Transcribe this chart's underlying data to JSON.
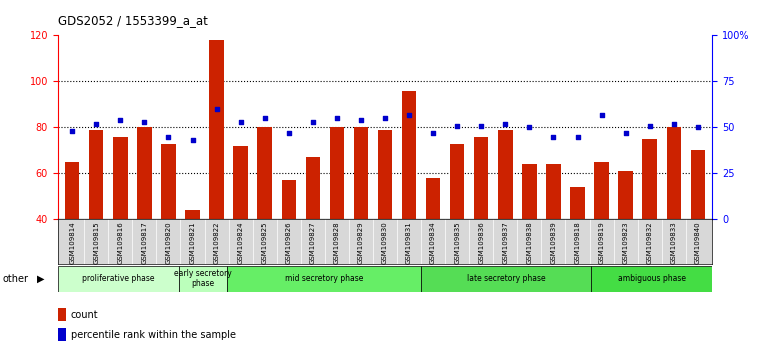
{
  "title": "GDS2052 / 1553399_a_at",
  "samples": [
    "GSM109814",
    "GSM109815",
    "GSM109816",
    "GSM109817",
    "GSM109820",
    "GSM109821",
    "GSM109822",
    "GSM109824",
    "GSM109825",
    "GSM109826",
    "GSM109827",
    "GSM109828",
    "GSM109829",
    "GSM109830",
    "GSM109831",
    "GSM109834",
    "GSM109835",
    "GSM109836",
    "GSM109837",
    "GSM109838",
    "GSM109839",
    "GSM109818",
    "GSM109819",
    "GSM109823",
    "GSM109832",
    "GSM109833",
    "GSM109840"
  ],
  "counts": [
    65,
    79,
    76,
    80,
    73,
    44,
    118,
    72,
    80,
    57,
    67,
    80,
    80,
    79,
    96,
    58,
    73,
    76,
    79,
    64,
    64,
    54,
    65,
    61,
    75,
    80,
    70
  ],
  "percentiles": [
    48,
    52,
    54,
    53,
    45,
    43,
    60,
    53,
    55,
    47,
    53,
    55,
    54,
    55,
    57,
    47,
    51,
    51,
    52,
    50,
    45,
    45,
    57,
    47,
    51,
    52,
    50
  ],
  "ylim_left": [
    40,
    120
  ],
  "ylim_right": [
    0,
    100
  ],
  "yticks_left": [
    40,
    60,
    80,
    100,
    120
  ],
  "yticks_right": [
    0,
    25,
    50,
    75,
    100
  ],
  "ytick_labels_right": [
    "0",
    "25",
    "50",
    "75",
    "100%"
  ],
  "bar_color": "#cc2200",
  "dot_color": "#0000cc",
  "phase_boundaries": [
    {
      "label": "proliferative phase",
      "start": 0,
      "end": 5,
      "color": "#ccffcc"
    },
    {
      "label": "early secretory\nphase",
      "start": 5,
      "end": 7,
      "color": "#bbffbb"
    },
    {
      "label": "mid secretory phase",
      "start": 7,
      "end": 15,
      "color": "#66ee66"
    },
    {
      "label": "late secretory phase",
      "start": 15,
      "end": 22,
      "color": "#55dd55"
    },
    {
      "label": "ambiguous phase",
      "start": 22,
      "end": 27,
      "color": "#44dd44"
    }
  ],
  "other_label": "other",
  "legend_count_label": "count",
  "legend_percentile_label": "percentile rank within the sample",
  "tick_area_bg": "#d8d8d8",
  "axis_bg": "#ffffff",
  "grid_dotted_color": "#000000"
}
